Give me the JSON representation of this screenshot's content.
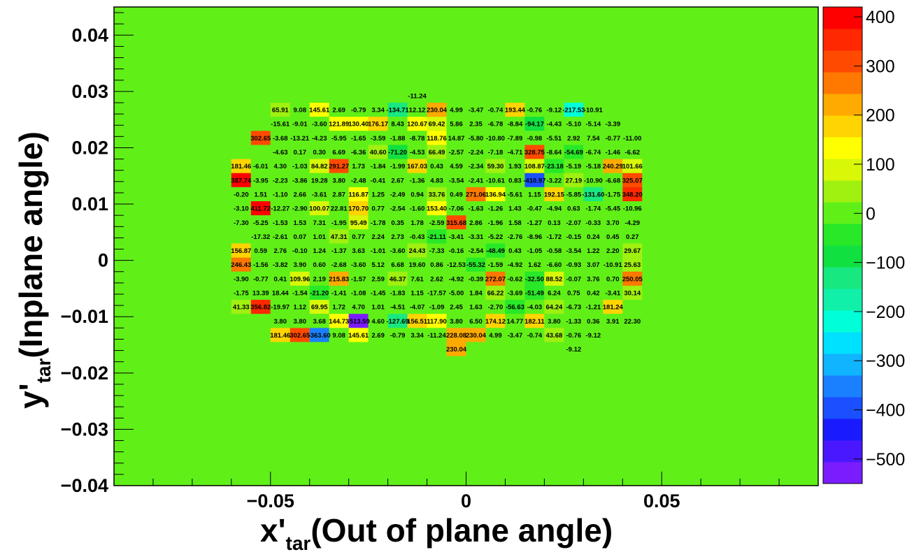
{
  "chart_data": {
    "type": "heatmap",
    "xlabel_main": "x'",
    "xlabel_sub": "tar",
    "xlabel_rest": "(Out of plane angle)",
    "ylabel_main": "y'",
    "ylabel_sub": "tar",
    "ylabel_rest": "(Inplane angle)",
    "xlim": [
      -0.09,
      0.09
    ],
    "ylim": [
      -0.04,
      0.045
    ],
    "x_ticks": [
      -0.05,
      0,
      0.05
    ],
    "x_tick_labels": [
      "−0.05",
      "0",
      "0.05"
    ],
    "y_ticks": [
      -0.04,
      -0.03,
      -0.02,
      -0.01,
      0,
      0.01,
      0.02,
      0.03,
      0.04
    ],
    "y_tick_labels": [
      "−0.04",
      "−0.03",
      "−0.02",
      "−0.01",
      "0",
      "0.01",
      "0.02",
      "0.03",
      "0.04"
    ],
    "background_value": 0,
    "bin_x0": -0.06,
    "bin_width": 0.005,
    "bin_y_top": 0.0305,
    "bin_height": 0.0025,
    "rows": [
      {
        "y": 0.02925,
        "start_col": 9,
        "values": [
          -11.24
        ]
      },
      {
        "y": 0.02675,
        "start_col": 2,
        "values": [
          65.91,
          9.08,
          145.61,
          2.69,
          -0.79,
          3.34,
          -134.71,
          12.12,
          230.04,
          4.99,
          -3.47,
          -0.74,
          193.44,
          -0.76,
          -9.12,
          -217.53,
          -10.91
        ]
      },
      {
        "y": 0.02425,
        "start_col": 2,
        "values": [
          -15.61,
          -9.01,
          -3.6,
          121.89,
          130.4,
          176.17,
          8.43,
          120.67,
          69.42,
          5.86,
          2.35,
          -6.78,
          -8.84,
          -94.17,
          -4.43,
          -5.1,
          -5.14,
          -3.39
        ]
      },
      {
        "y": 0.02175,
        "start_col": 1,
        "values": [
          302.65,
          -3.68,
          -13.21,
          -4.23,
          -5.95,
          -1.65,
          -3.59,
          -1.88,
          -8.78,
          118.76,
          14.87,
          -5.8,
          -10.8,
          -7.89,
          -0.98,
          -5.51,
          2.92,
          7.54,
          -0.77,
          -11.0
        ]
      },
      {
        "y": 0.01925,
        "start_col": 2,
        "values": [
          -4.63,
          0.17,
          0.3,
          6.69,
          -6.36,
          40.6,
          -71.2,
          -4.53,
          66.49,
          -2.57,
          -2.24,
          -7.18,
          -4.71,
          328.75,
          -8.64,
          -54.69,
          -6.74,
          -1.46,
          -6.62
        ]
      },
      {
        "y": 0.01675,
        "start_col": 0,
        "values": [
          181.46,
          -6.01,
          4.3,
          -1.03,
          84.82,
          291.27,
          1.73,
          -1.84,
          -1.99,
          167.03,
          0.43,
          4.59,
          -2.34,
          59.3,
          1.93,
          108.87,
          -23.18,
          -5.19,
          -5.18,
          240.29,
          101.66
        ]
      },
      {
        "y": 0.01425,
        "start_col": 0,
        "values": [
          387.74,
          -3.95,
          -2.23,
          -3.86,
          19.28,
          3.8,
          -2.48,
          -0.41,
          2.67,
          -1.36,
          4.83,
          -3.54,
          -2.41,
          -10.61,
          0.83,
          -410.97,
          -3.22,
          27.19,
          -10.9,
          -6.68,
          325.07
        ]
      },
      {
        "y": 0.01175,
        "start_col": 0,
        "values": [
          -0.2,
          1.51,
          -1.1,
          2.66,
          -3.61,
          2.87,
          116.87,
          1.25,
          -2.49,
          0.94,
          33.76,
          0.49,
          271.06,
          136.94,
          -5.61,
          1.15,
          192.15,
          -5.85,
          -131.6,
          -1.75,
          348.2
        ]
      },
      {
        "y": 0.00925,
        "start_col": 0,
        "values": [
          -3.1,
          411.72,
          -12.27,
          -2.9,
          100.07,
          22.81,
          170.7,
          0.77,
          -2.54,
          -1.6,
          153.4,
          -7.06,
          -1.63,
          -1.26,
          1.43,
          -0.47,
          -4.94,
          0.63,
          -1.74,
          -5.45,
          -10.96
        ]
      },
      {
        "y": 0.00675,
        "start_col": 0,
        "values": [
          -7.3,
          -5.25,
          -1.53,
          1.53,
          7.31,
          -1.95,
          95.49,
          -1.78,
          0.35,
          1.78,
          -2.59,
          315.68,
          2.86,
          -1.96,
          1.58,
          -1.27,
          0.13,
          -2.07,
          -0.33,
          3.7,
          -4.29
        ]
      },
      {
        "y": 0.00425,
        "start_col": 1,
        "values": [
          -17.32,
          -2.61,
          0.07,
          1.01,
          47.31,
          0.77,
          2.24,
          2.73,
          -0.43,
          -21.11,
          -3.41,
          -3.31,
          -5.22,
          -2.76,
          -8.96,
          -1.72,
          -0.15,
          0.24,
          0.45,
          0.27
        ]
      },
      {
        "y": 0.00175,
        "start_col": 0,
        "values": [
          156.87,
          0.59,
          2.76,
          -0.1,
          1.24,
          -1.37,
          3.63,
          -1.01,
          -3.6,
          24.43,
          -7.33,
          -0.16,
          -2.54,
          -48.49,
          0.43,
          -1.05,
          -0.58,
          -3.54,
          1.22,
          2.2,
          29.67
        ]
      },
      {
        "y": -0.00075,
        "start_col": 0,
        "values": [
          246.43,
          -1.56,
          -3.82,
          3.9,
          0.6,
          -2.68,
          -3.6,
          5.12,
          6.68,
          19.6,
          0.86,
          -12.53,
          -55.32,
          -1.59,
          -4.92,
          1.62,
          -6.6,
          -0.93,
          3.07,
          -10.91,
          25.63
        ]
      },
      {
        "y": -0.00325,
        "start_col": 0,
        "values": [
          -3.9,
          -0.77,
          0.41,
          109.96,
          2.19,
          215.83,
          -1.57,
          2.59,
          46.37,
          7.61,
          2.62,
          -4.92,
          -0.39,
          272.07,
          -0.62,
          -32.5,
          88.52,
          -0.07,
          3.76,
          0.7,
          250.05
        ]
      },
      {
        "y": -0.00575,
        "start_col": 0,
        "values": [
          -1.75,
          13.39,
          18.44,
          -1.54,
          -21.2,
          -1.41,
          -1.08,
          -1.45,
          -1.83,
          1.15,
          -17.57,
          -5.0,
          1.84,
          66.22,
          -3.69,
          -51.49,
          6.24,
          0.75,
          0.42,
          -3.41,
          30.14
        ]
      },
      {
        "y": -0.00825,
        "start_col": 0,
        "values": [
          41.33,
          356.82,
          -19.97,
          1.12,
          69.95,
          1.72,
          4.7,
          1.01,
          -4.51,
          -4.07,
          -1.09,
          2.45,
          1.63,
          -2.7,
          -56.63,
          -4.03,
          64.24,
          -6.73,
          -1.21,
          181.24
        ]
      },
      {
        "y": -0.01075,
        "start_col": 2,
        "values": [
          3.8,
          3.8,
          3.68,
          144.73,
          -513.59,
          4.6,
          -127.69,
          156.51,
          117.9,
          3.8,
          6.5,
          174.12,
          14.77,
          182.11,
          3.8,
          -1.33,
          0.36,
          3.91,
          22.3
        ]
      },
      {
        "y": -0.01325,
        "start_col": 2,
        "values": [
          181.46,
          302.65,
          -363.6,
          9.08,
          145.61,
          2.69,
          -0.79,
          3.34,
          -11.24,
          228.08,
          230.04,
          4.99,
          -3.47,
          -0.74,
          43.68,
          -0.76,
          -9.12
        ]
      },
      {
        "y": -0.01575,
        "cols": [
          11,
          17
        ],
        "values": [
          230.04,
          -9.12
        ]
      }
    ],
    "display_labels": {
      "-0.76_2": "-0.76",
      "note": ""
    },
    "colorbar": {
      "min": -550,
      "max": 420,
      "ticks": [
        400,
        300,
        200,
        100,
        0,
        -100,
        -200,
        -300,
        -400,
        -500
      ],
      "tick_labels": [
        "400",
        "300",
        "200",
        "100",
        "0",
        "−100",
        "−200",
        "−300",
        "−400",
        "−500"
      ],
      "palette": [
        "#7b1cff",
        "#4a18ff",
        "#1a1aff",
        "#1a50ff",
        "#1a80ff",
        "#10b4ff",
        "#00e0ff",
        "#00ffd8",
        "#10f0a8",
        "#18e880",
        "#10e040",
        "#28e828",
        "#60f018",
        "#a0f010",
        "#d8f808",
        "#ffff00",
        "#ffd400",
        "#ffaa00",
        "#ff7800",
        "#ff4a00",
        "#ff2800",
        "#ff0000"
      ]
    }
  }
}
